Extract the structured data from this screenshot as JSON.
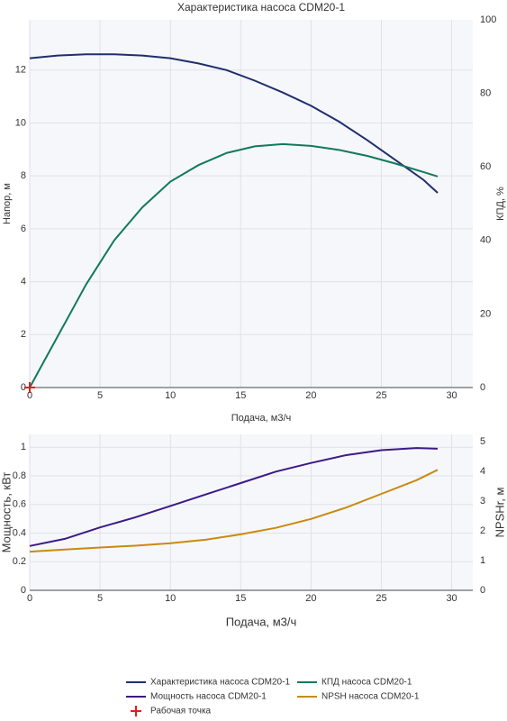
{
  "chart_data": [
    {
      "type": "line",
      "title": "Характеристика насоса CDM20-1",
      "x_label": "Подача, м3/ч",
      "y_label": "Напор, м",
      "y2_label": "КПД, %",
      "xlim": [
        0,
        31.5
      ],
      "xticks": [
        0,
        5,
        10,
        15,
        20,
        25,
        30
      ],
      "ylim": [
        0,
        13.9
      ],
      "yticks": [
        0,
        2,
        4,
        6,
        8,
        10,
        12
      ],
      "y2lim": [
        0,
        100
      ],
      "y2ticks": [
        0,
        20,
        40,
        60,
        80,
        100
      ],
      "grid": true,
      "legend": "bottom",
      "series": [
        {
          "name": "Характеристика насоса CDM20-1",
          "color": "#1f2f6e",
          "axis": "y",
          "x": [
            0,
            2,
            4,
            6,
            8,
            10,
            12,
            14,
            16,
            18,
            20,
            22,
            24,
            26,
            28,
            29
          ],
          "values": [
            12.45,
            12.55,
            12.6,
            12.6,
            12.55,
            12.45,
            12.25,
            12.0,
            11.6,
            11.15,
            10.65,
            10.05,
            9.35,
            8.6,
            7.85,
            7.36
          ]
        },
        {
          "name": "КПД насоса CDM20-1",
          "color": "#117a5c",
          "axis": "y2",
          "x": [
            0,
            1,
            2,
            3,
            4,
            5,
            6,
            8,
            10,
            12,
            14,
            16,
            18,
            20,
            22,
            24,
            26,
            28,
            29
          ],
          "values": [
            0,
            7,
            14,
            21,
            28,
            34,
            40,
            49,
            56,
            60.5,
            63.8,
            65.6,
            66.2,
            65.7,
            64.6,
            63,
            60.9,
            58.6,
            57.4
          ]
        },
        {
          "name": "Рабочая точка",
          "color": "#e02020",
          "axis": "y",
          "marker": "cross",
          "x": [
            0
          ],
          "values": [
            0
          ]
        }
      ]
    },
    {
      "type": "line",
      "x_label": "Подача, м3/ч",
      "y_label": "Мощность, кВт",
      "y2_label": "NPSHr, м",
      "xlim": [
        0,
        31.5
      ],
      "xticks": [
        0,
        5,
        10,
        15,
        20,
        25,
        30
      ],
      "ylim": [
        0,
        1.09
      ],
      "yticks": [
        0,
        0.2,
        0.4,
        0.6,
        0.8,
        1
      ],
      "y2lim": [
        0,
        5.24
      ],
      "y2ticks": [
        0,
        1,
        2,
        3,
        4,
        5
      ],
      "grid": true,
      "series": [
        {
          "name": "Мощность насоса CDM20-1",
          "color": "#3d1a86",
          "axis": "y",
          "x": [
            0,
            2.5,
            5,
            7.5,
            10,
            12.5,
            15,
            17.5,
            20,
            22.5,
            25,
            27.5,
            29
          ],
          "values": [
            0.31,
            0.36,
            0.44,
            0.51,
            0.59,
            0.67,
            0.75,
            0.83,
            0.89,
            0.945,
            0.98,
            0.995,
            0.99
          ]
        },
        {
          "name": "NPSH насоса CDM20-1",
          "color": "#c98a12",
          "axis": "y2",
          "x": [
            0,
            2.5,
            5,
            7.5,
            10,
            12.5,
            15,
            17.5,
            20,
            22.5,
            25,
            27.5,
            29
          ],
          "values": [
            1.3,
            1.37,
            1.44,
            1.5,
            1.58,
            1.7,
            1.88,
            2.1,
            2.4,
            2.78,
            3.24,
            3.7,
            4.05
          ]
        }
      ]
    }
  ]
}
